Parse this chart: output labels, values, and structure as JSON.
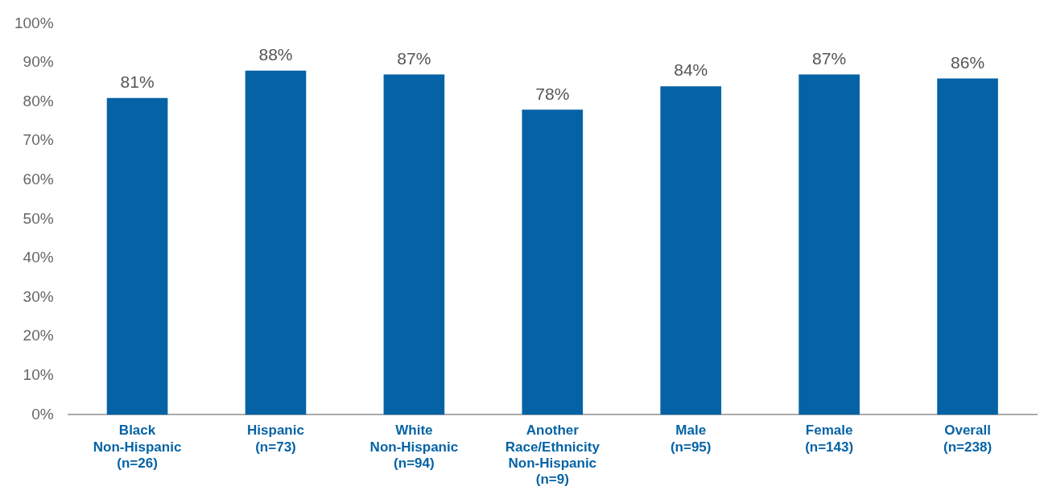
{
  "chart_data": {
    "type": "bar",
    "categories": [
      "Black\nNon-Hispanic\n(n=26)",
      "Hispanic\n(n=73)",
      "White\nNon-Hispanic\n(n=94)",
      "Another\nRace/Ethnicity\nNon-Hispanic\n(n=9)",
      "Male\n(n=95)",
      "Female\n(n=143)",
      "Overall\n(n=238)"
    ],
    "values": [
      81,
      88,
      87,
      78,
      84,
      87,
      86
    ],
    "color": "#0563a5",
    "ylim": [
      0,
      100
    ],
    "yticks": [
      {
        "value": 0,
        "label": "0%"
      },
      {
        "value": 10,
        "label": "10%"
      },
      {
        "value": 20,
        "label": "20%"
      },
      {
        "value": 30,
        "label": "30%"
      },
      {
        "value": 40,
        "label": "40%"
      },
      {
        "value": 50,
        "label": "50%"
      },
      {
        "value": 60,
        "label": "60%"
      },
      {
        "value": 70,
        "label": "70%"
      },
      {
        "value": 80,
        "label": "80%"
      },
      {
        "value": 90,
        "label": "90%"
      },
      {
        "value": 100,
        "label": "100%"
      }
    ],
    "value_labels": [
      "81%",
      "88%",
      "87%",
      "78%",
      "84%",
      "87%",
      "86%"
    ],
    "grid": false,
    "legend": false
  }
}
